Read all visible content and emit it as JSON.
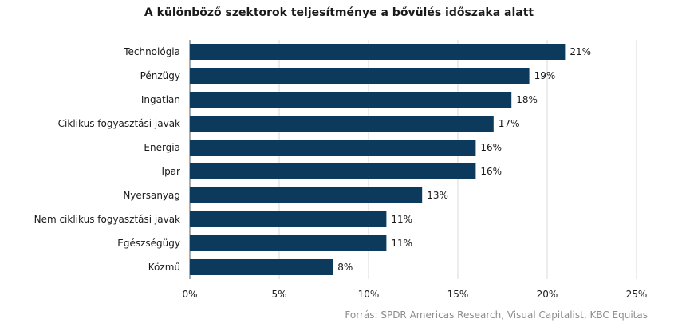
{
  "chart_data": {
    "type": "bar",
    "orientation": "horizontal",
    "title": "A különböző szektorok teljesítménye  a bővülés időszaka alatt",
    "categories": [
      "Technológia",
      "Pénzügy",
      "Ingatlan",
      "Ciklikus fogyasztási javak",
      "Energia",
      "Ipar",
      "Nyersanyag",
      "Nem ciklikus fogyasztási javak",
      "Egészségügy",
      "Közmű"
    ],
    "values": [
      21,
      19,
      18,
      17,
      16,
      16,
      13,
      11,
      11,
      8
    ],
    "value_labels": [
      "21%",
      "19%",
      "18%",
      "17%",
      "16%",
      "16%",
      "13%",
      "11%",
      "11%",
      "8%"
    ],
    "x_ticks": [
      "0%",
      "5%",
      "10%",
      "15%",
      "20%",
      "25%"
    ],
    "xlim": [
      0,
      25
    ],
    "grid": "vertical",
    "bar_color": "#0b3a5d",
    "source": "Forrás: SPDR Americas Research, Visual Capitalist, KBC Equitas"
  }
}
